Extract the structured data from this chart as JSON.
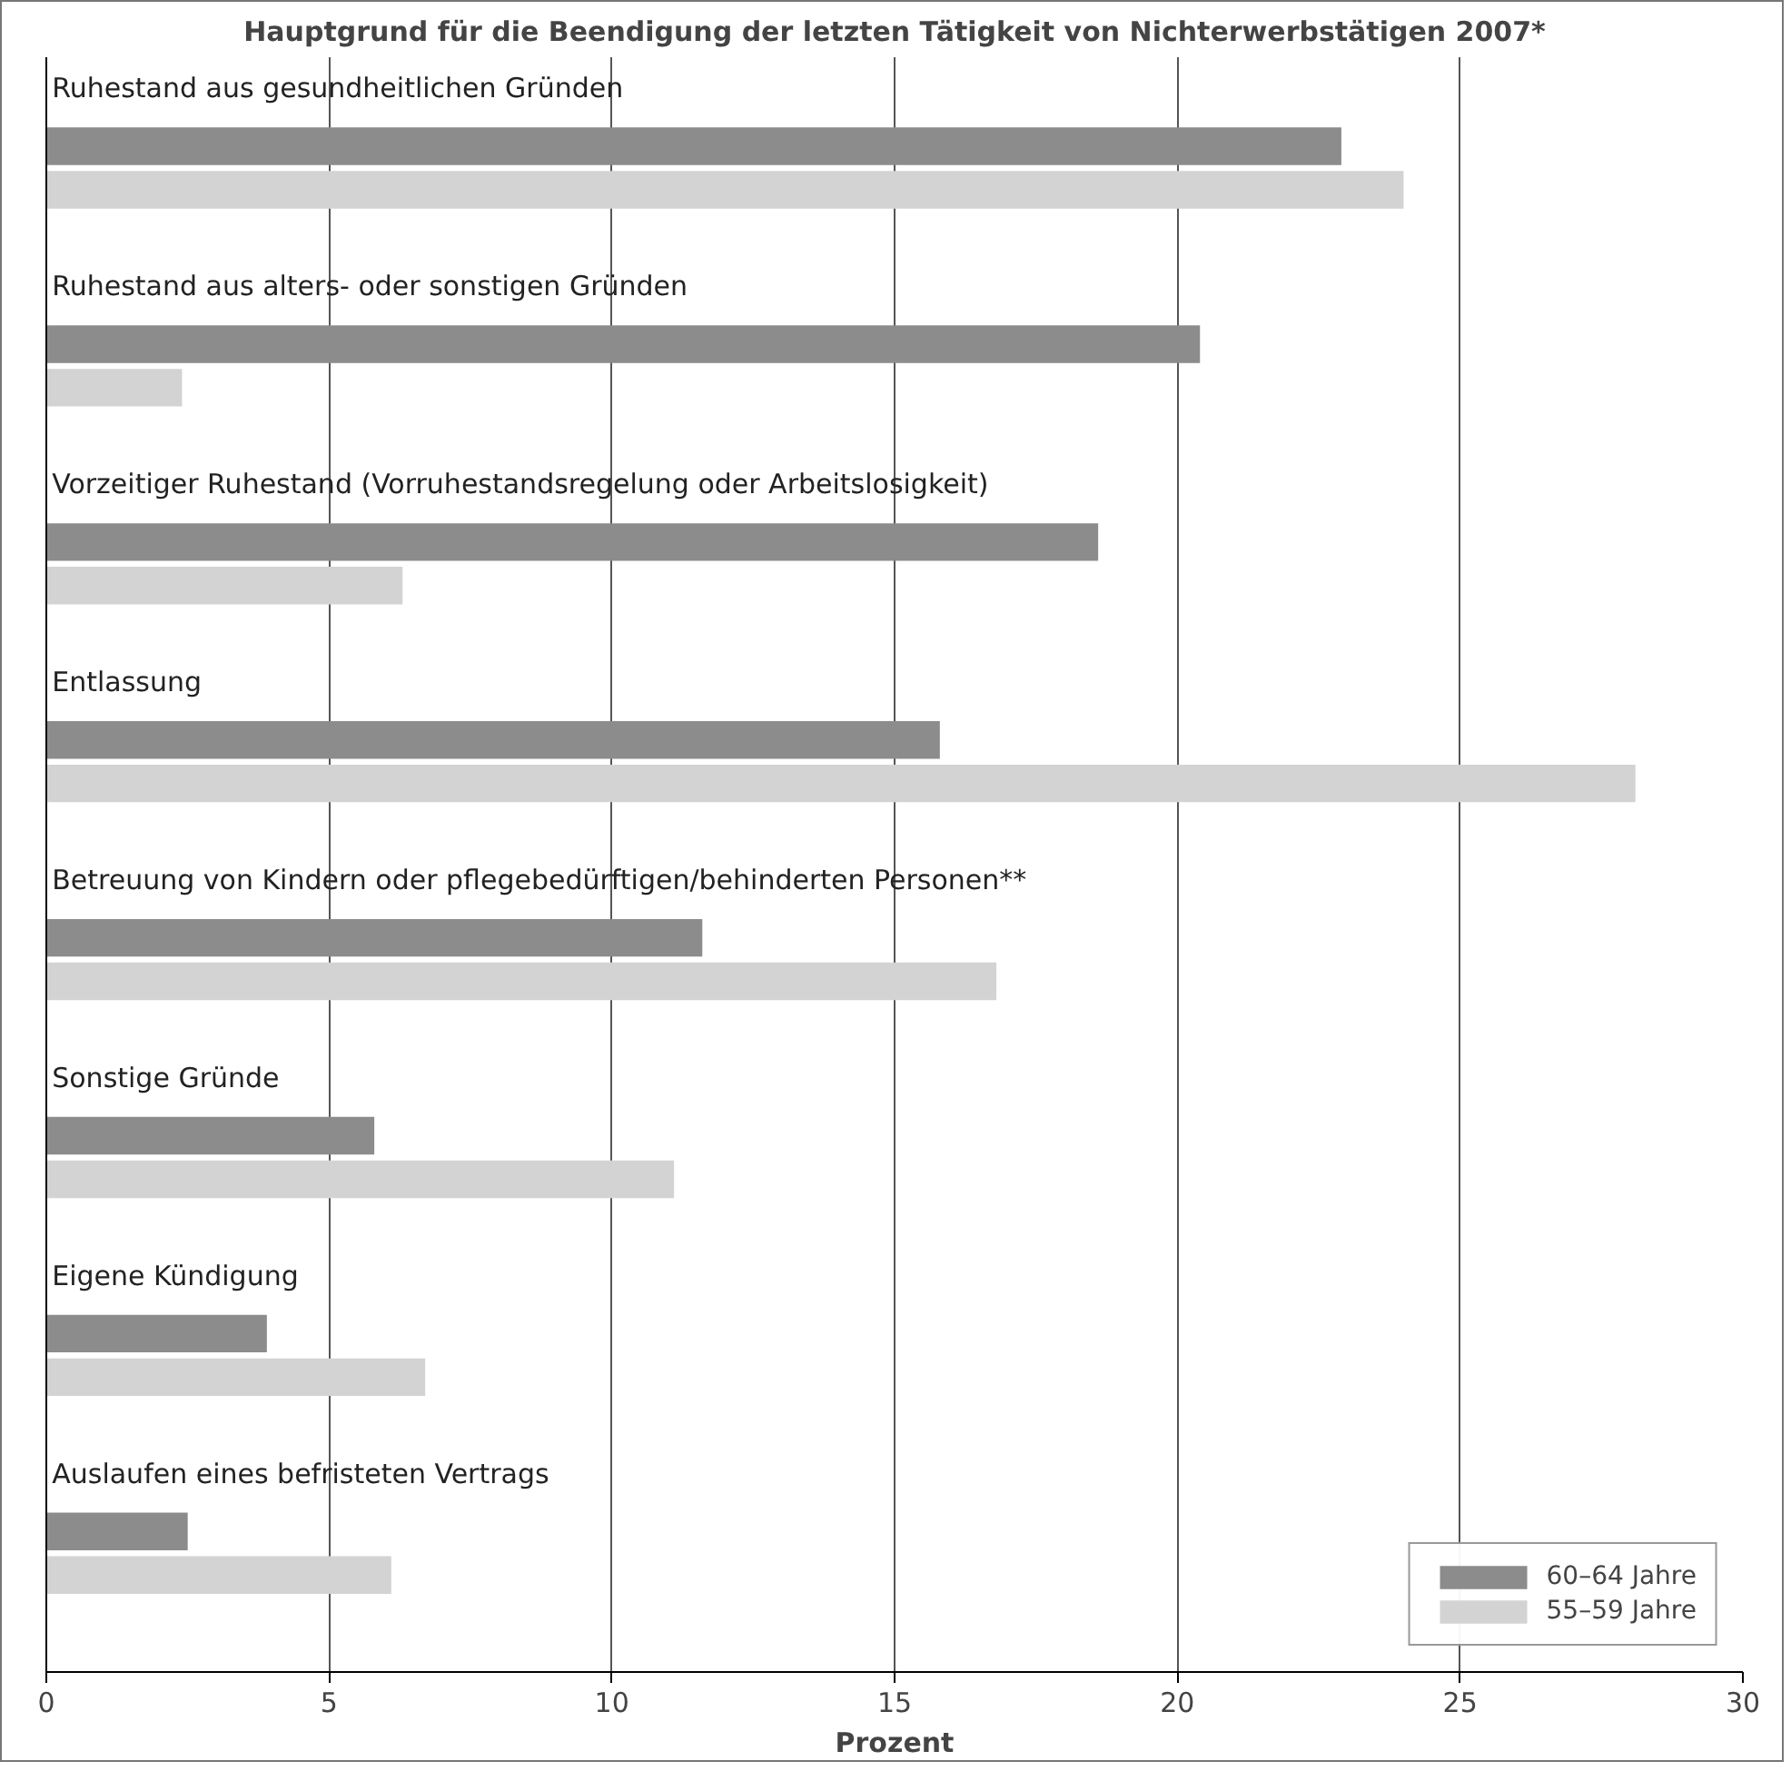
{
  "chart_data": {
    "type": "bar",
    "orientation": "horizontal",
    "title": "Hauptgrund für die Beendigung der letzten Tätigkeit von Nichterwerbstätigen 2007*",
    "xlabel": "Prozent",
    "categories": [
      "Ruhestand aus gesundheitlichen Gründen",
      "Ruhestand aus alters- oder sonstigen Gründen",
      "Vorzeitiger Ruhestand (Vorruhestandsregelung oder Arbeitslosigkeit)",
      "Entlassung",
      "Betreuung von Kindern oder pflegebedürftigen/behinderten Personen**",
      "Sonstige Gründe",
      "Eigene Kündigung",
      "Auslaufen eines befristeten Vertrags"
    ],
    "series": [
      {
        "name": "60–64 Jahre",
        "color": "#8c8c8c",
        "values": [
          22.9,
          20.4,
          18.6,
          15.8,
          11.6,
          5.8,
          3.9,
          2.5
        ]
      },
      {
        "name": "55–59 Jahre",
        "color": "#d3d3d3",
        "values": [
          24.0,
          2.4,
          6.3,
          28.1,
          16.8,
          11.1,
          6.7,
          6.1
        ]
      }
    ],
    "xlim": [
      0,
      30
    ],
    "xticks": [
      0,
      5,
      10,
      15,
      20,
      25,
      30
    ],
    "grid": "x",
    "legend": "bottom right"
  }
}
